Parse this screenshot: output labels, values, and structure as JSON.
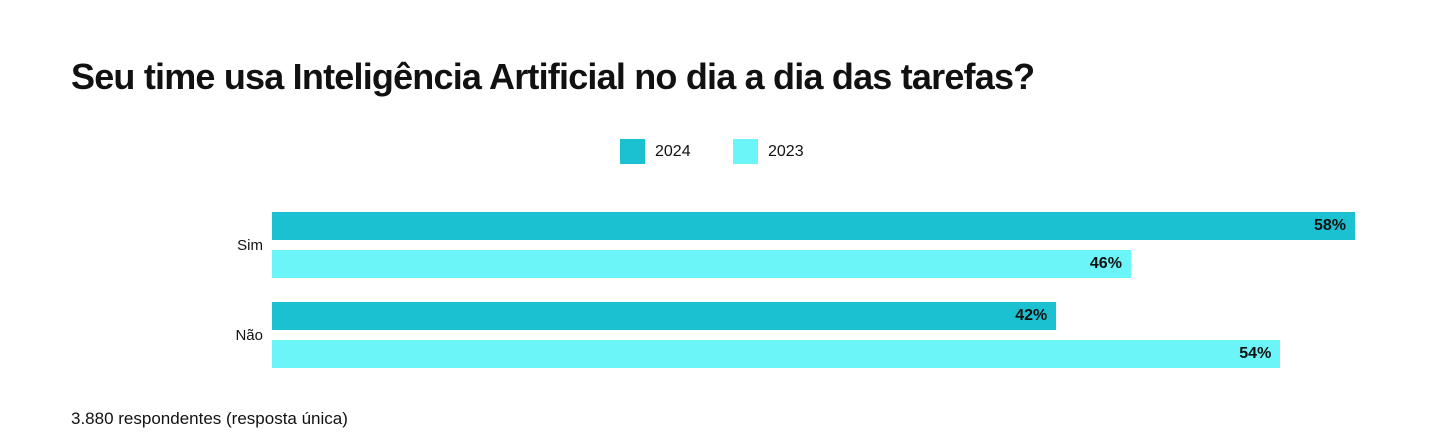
{
  "chart_data": {
    "type": "bar",
    "orientation": "horizontal",
    "title": "Seu time usa Inteligência Artificial no dia a dia das tarefas?",
    "categories": [
      "Sim",
      "Não"
    ],
    "series": [
      {
        "name": "2024",
        "values": [
          58,
          42
        ],
        "labels": [
          "58%",
          "42%"
        ],
        "color": "#1bc1d1"
      },
      {
        "name": "2023",
        "values": [
          46,
          54
        ],
        "labels": [
          "46%",
          "54%"
        ],
        "color": "#6cf5f8"
      }
    ],
    "xlim": [
      0,
      58
    ],
    "grid": false,
    "legend_position": "top-center",
    "footnote": "3.880 respondentes (resposta única)"
  }
}
